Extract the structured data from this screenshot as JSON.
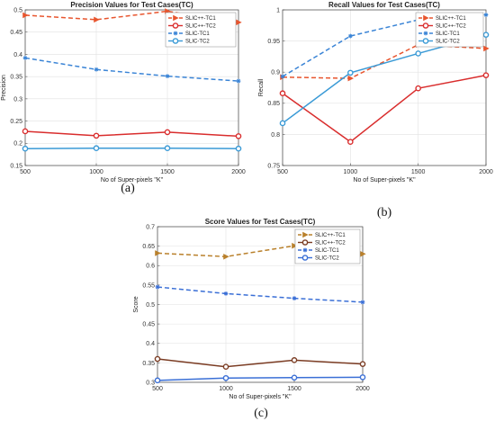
{
  "chart_data": [
    {
      "type": "line",
      "title": "Precision Values for Test Cases(TC)",
      "xlabel": "No of Super-pixels \"K\"",
      "ylabel": "Precision",
      "caption": "(a)",
      "x": [
        500,
        1000,
        1500,
        2000
      ],
      "xticks": [
        "500",
        "1000",
        "1500",
        "2000"
      ],
      "ylim": [
        0.15,
        0.5
      ],
      "yticks": [
        "0.15",
        "0.2",
        "0.25",
        "0.3",
        "0.35",
        "0.4",
        "0.45",
        "0.5"
      ],
      "legend_position": "top-right",
      "series": [
        {
          "name": "SLIC++-TC1",
          "values": [
            0.488,
            0.478,
            0.497,
            0.472
          ],
          "color": "#e8552e",
          "dash": "5,3",
          "marker": "triangle-right"
        },
        {
          "name": "SLIC++-TC2",
          "values": [
            0.227,
            0.217,
            0.225,
            0.216
          ],
          "color": "#d92d2d",
          "dash": "",
          "marker": "circle"
        },
        {
          "name": "SLIC-TC1",
          "values": [
            0.392,
            0.366,
            0.351,
            0.34
          ],
          "color": "#3a84d6",
          "dash": "5,3",
          "marker": "star"
        },
        {
          "name": "SLIC-TC2",
          "values": [
            0.188,
            0.189,
            0.189,
            0.188
          ],
          "color": "#3a9ad6",
          "dash": "",
          "marker": "circle"
        }
      ]
    },
    {
      "type": "line",
      "title": "Recall Values for Test Cases(TC)",
      "xlabel": "No of Super-pixels \"K\"",
      "ylabel": "Recall",
      "caption": "(b)",
      "x": [
        500,
        1000,
        1500,
        2000
      ],
      "xticks": [
        "500",
        "1000",
        "1500",
        "2000"
      ],
      "ylim": [
        0.75,
        1.0
      ],
      "yticks": [
        "0.75",
        "0.8",
        "0.85",
        "0.9",
        "0.95",
        "1"
      ],
      "legend_position": "top-right",
      "series": [
        {
          "name": "SLIC++-TC1",
          "values": [
            0.892,
            0.89,
            0.944,
            0.938
          ],
          "color": "#e8552e",
          "dash": "5,3",
          "marker": "triangle-right"
        },
        {
          "name": "SLIC++-TC2",
          "values": [
            0.866,
            0.788,
            0.874,
            0.895
          ],
          "color": "#d92d2d",
          "dash": "",
          "marker": "circle"
        },
        {
          "name": "SLIC-TC1",
          "values": [
            0.893,
            0.958,
            0.984,
            0.992
          ],
          "color": "#3a84d6",
          "dash": "5,3",
          "marker": "star"
        },
        {
          "name": "SLIC-TC2",
          "values": [
            0.818,
            0.899,
            0.93,
            0.96
          ],
          "color": "#3a9ad6",
          "dash": "",
          "marker": "circle"
        }
      ]
    },
    {
      "type": "line",
      "title": "Score Values for Test Cases(TC)",
      "xlabel": "No of Super-pixels \"K\"",
      "ylabel": "Score",
      "caption": "(c)",
      "x": [
        500,
        1000,
        1500,
        2000
      ],
      "xticks": [
        "500",
        "1000",
        "1500",
        "2000"
      ],
      "ylim": [
        0.3,
        0.7
      ],
      "yticks": [
        "0.3",
        "0.35",
        "0.4",
        "0.45",
        "0.5",
        "0.55",
        "0.6",
        "0.65",
        "0.7"
      ],
      "legend_position": "top-right",
      "series": [
        {
          "name": "SLIC++-TC1",
          "values": [
            0.632,
            0.623,
            0.651,
            0.63
          ],
          "color": "#b9802b",
          "dash": "5,3",
          "marker": "triangle-right"
        },
        {
          "name": "SLIC++-TC2",
          "values": [
            0.36,
            0.34,
            0.357,
            0.347
          ],
          "color": "#7a3b22",
          "dash": "",
          "marker": "circle"
        },
        {
          "name": "SLIC-TC1",
          "values": [
            0.545,
            0.528,
            0.516,
            0.506
          ],
          "color": "#3a6fd6",
          "dash": "5,3",
          "marker": "star"
        },
        {
          "name": "SLIC-TC2",
          "values": [
            0.305,
            0.311,
            0.312,
            0.313
          ],
          "color": "#3a6fd6",
          "dash": "",
          "marker": "circle"
        }
      ]
    }
  ]
}
